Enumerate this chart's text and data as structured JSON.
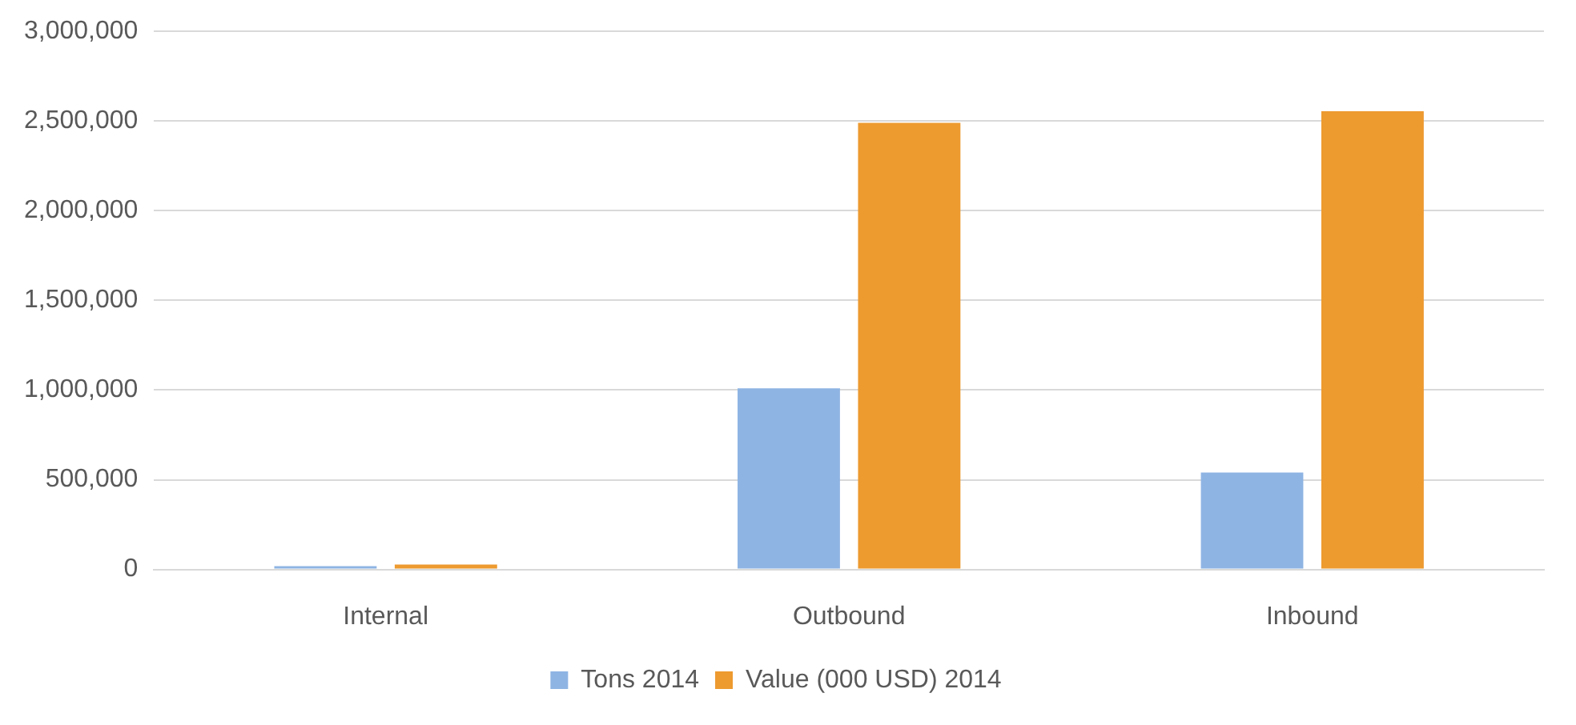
{
  "chart_data": {
    "type": "bar",
    "categories": [
      "Internal",
      "Outbound",
      "Inbound"
    ],
    "series": [
      {
        "name": "Tons 2014",
        "color": "#8eb4e3",
        "values": [
          18000,
          1010000,
          540000
        ]
      },
      {
        "name": "Value (000 USD) 2014",
        "color": "#ed9a2f",
        "values": [
          27000,
          2490000,
          2555000
        ]
      }
    ],
    "ylim": [
      0,
      3000000
    ],
    "yticks": [
      {
        "value": 0,
        "label": "0"
      },
      {
        "value": 500000,
        "label": "500,000"
      },
      {
        "value": 1000000,
        "label": "1,000,000"
      },
      {
        "value": 1500000,
        "label": "1,500,000"
      },
      {
        "value": 2000000,
        "label": "2,000,000"
      },
      {
        "value": 2500000,
        "label": "2,500,000"
      },
      {
        "value": 3000000,
        "label": "3,000,000"
      }
    ],
    "grid": "y",
    "legend": "bottom"
  }
}
